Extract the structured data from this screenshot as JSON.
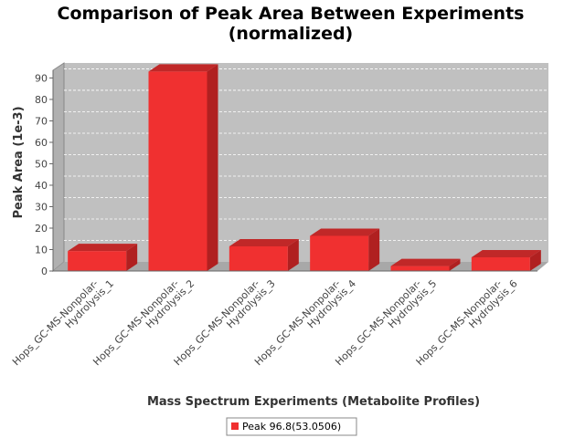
{
  "chart_data": {
    "type": "bar",
    "title": "Comparison of Peak Area Between Experiments (normalized)",
    "title_lines": [
      "Comparison of Peak Area Between Experiments",
      "(normalized)"
    ],
    "xlabel": "Mass Spectrum Experiments (Metabolite Profiles)",
    "ylabel": "Peak Area (1e-3)",
    "ylim": [
      0,
      97
    ],
    "yticks": [
      0,
      10,
      20,
      30,
      40,
      50,
      60,
      70,
      80,
      90
    ],
    "categories": [
      [
        "Hops_GC-MS-Nonpolar-",
        "Hydrolysis_1"
      ],
      [
        "Hops_GC-MS-Nonpolar-",
        "Hydrolysis_2"
      ],
      [
        "Hops_GC-MS-Nonpolar-",
        "Hydrolysis_3"
      ],
      [
        "Hops_GC-MS-Nonpolar-",
        "Hydrolysis_4"
      ],
      [
        "Hops_GC-MS-Nonpolar-",
        "Hydrolysis_5"
      ],
      [
        "Hops_GC-MS-Nonpolar-",
        "Hydrolysis_6"
      ]
    ],
    "series": [
      {
        "name": "Peak 96.8(53.0506)",
        "values": [
          9.3,
          93.0,
          11.5,
          16.4,
          2.3,
          6.4
        ]
      }
    ],
    "grid": true,
    "legend_position": "bottom",
    "colors": {
      "bar": "#f03030",
      "bar_top": "#c02828",
      "bar_side": "#b02020",
      "plot_bg": "#c0c0c0"
    }
  }
}
